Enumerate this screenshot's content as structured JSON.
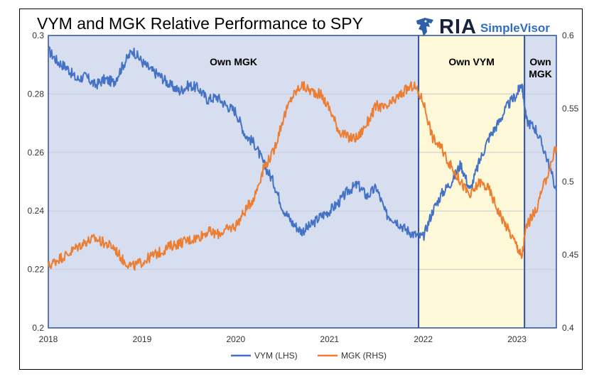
{
  "brand": {
    "name": "RIA",
    "product": "SimpleVisor"
  },
  "colors": {
    "vym": "#4472c4",
    "mgk": "#ed7d31",
    "region_blue": "#d6def0",
    "region_yellow": "#fdf8d8",
    "divider": "#2f4fa0"
  },
  "chart_data": {
    "type": "line",
    "title": "VYM and MGK Relative Performance to SPY",
    "x_labels": [
      "2018",
      "2019",
      "2020",
      "2021",
      "2022",
      "2023"
    ],
    "x_range": [
      2018.0,
      2023.42
    ],
    "y_left": {
      "range": [
        0.2,
        0.3
      ],
      "ticks": [
        "0.2",
        "0.22",
        "0.24",
        "0.26",
        "0.28",
        "0.3"
      ]
    },
    "y_right": {
      "range": [
        0.4,
        0.6
      ],
      "ticks": [
        "0.4",
        "0.45",
        "0.5",
        "0.55",
        "0.6"
      ]
    },
    "grid": true,
    "legend_position": "bottom",
    "regions": [
      {
        "label": [
          "Own MGK"
        ],
        "start": 2018.0,
        "end": 2021.95,
        "fill": "blue"
      },
      {
        "label": [
          "Own VYM"
        ],
        "start": 2021.95,
        "end": 2023.08,
        "fill": "yellow"
      },
      {
        "label": [
          "Own",
          "MGK"
        ],
        "start": 2023.08,
        "end": 2023.42,
        "fill": "blue"
      }
    ],
    "series": [
      {
        "name": "VYM (LHS)",
        "axis": "left",
        "x": [
          2018.0,
          2018.1,
          2018.2,
          2018.3,
          2018.4,
          2018.5,
          2018.6,
          2018.7,
          2018.8,
          2018.9,
          2019.0,
          2019.1,
          2019.2,
          2019.3,
          2019.4,
          2019.5,
          2019.6,
          2019.7,
          2019.8,
          2019.9,
          2020.0,
          2020.1,
          2020.2,
          2020.3,
          2020.4,
          2020.5,
          2020.6,
          2020.7,
          2020.8,
          2020.9,
          2021.0,
          2021.1,
          2021.2,
          2021.3,
          2021.4,
          2021.5,
          2021.6,
          2021.7,
          2021.8,
          2021.9,
          2022.0,
          2022.1,
          2022.2,
          2022.3,
          2022.4,
          2022.5,
          2022.6,
          2022.7,
          2022.8,
          2022.9,
          2023.0,
          2023.05,
          2023.1,
          2023.2,
          2023.3,
          2023.42
        ],
        "values": [
          0.295,
          0.291,
          0.289,
          0.285,
          0.286,
          0.283,
          0.285,
          0.284,
          0.29,
          0.295,
          0.291,
          0.288,
          0.286,
          0.283,
          0.281,
          0.283,
          0.282,
          0.278,
          0.279,
          0.276,
          0.274,
          0.266,
          0.263,
          0.256,
          0.25,
          0.241,
          0.236,
          0.233,
          0.235,
          0.238,
          0.24,
          0.243,
          0.247,
          0.249,
          0.245,
          0.248,
          0.239,
          0.237,
          0.234,
          0.232,
          0.231,
          0.24,
          0.246,
          0.25,
          0.256,
          0.247,
          0.257,
          0.265,
          0.27,
          0.276,
          0.28,
          0.284,
          0.271,
          0.268,
          0.26,
          0.247
        ]
      },
      {
        "name": "MGK (RHS)",
        "axis": "right",
        "x": [
          2018.0,
          2018.1,
          2018.2,
          2018.3,
          2018.4,
          2018.5,
          2018.6,
          2018.7,
          2018.8,
          2018.9,
          2019.0,
          2019.1,
          2019.2,
          2019.3,
          2019.4,
          2019.5,
          2019.6,
          2019.7,
          2019.8,
          2019.9,
          2020.0,
          2020.1,
          2020.2,
          2020.3,
          2020.4,
          2020.5,
          2020.6,
          2020.7,
          2020.8,
          2020.9,
          2021.0,
          2021.1,
          2021.2,
          2021.3,
          2021.4,
          2021.5,
          2021.6,
          2021.7,
          2021.8,
          2021.9,
          2022.0,
          2022.1,
          2022.2,
          2022.3,
          2022.4,
          2022.5,
          2022.6,
          2022.7,
          2022.8,
          2022.9,
          2023.0,
          2023.05,
          2023.1,
          2023.2,
          2023.3,
          2023.42
        ],
        "values": [
          0.442,
          0.447,
          0.45,
          0.455,
          0.459,
          0.461,
          0.458,
          0.455,
          0.446,
          0.442,
          0.445,
          0.449,
          0.452,
          0.456,
          0.458,
          0.46,
          0.462,
          0.466,
          0.464,
          0.467,
          0.47,
          0.48,
          0.49,
          0.51,
          0.52,
          0.542,
          0.558,
          0.566,
          0.562,
          0.56,
          0.55,
          0.535,
          0.53,
          0.53,
          0.54,
          0.552,
          0.55,
          0.556,
          0.562,
          0.566,
          0.555,
          0.53,
          0.522,
          0.51,
          0.5,
          0.49,
          0.5,
          0.495,
          0.48,
          0.468,
          0.456,
          0.448,
          0.47,
          0.48,
          0.5,
          0.524
        ]
      }
    ]
  }
}
